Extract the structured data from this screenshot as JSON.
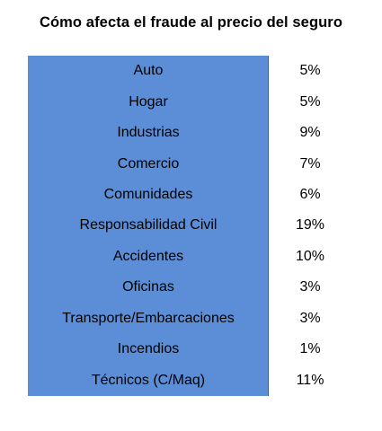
{
  "chart_data": {
    "type": "table",
    "title": "Cómo afecta el fraude al precio del seguro",
    "categories": [
      "Auto",
      "Hogar",
      "Industrias",
      "Comercio",
      "Comunidades",
      "Responsabilidad Civil",
      "Accidentes",
      "Oficinas",
      "Transporte/Embarcaciones",
      "Incendios",
      "Técnicos (C/Maq)"
    ],
    "values": [
      5,
      5,
      9,
      7,
      6,
      19,
      10,
      3,
      3,
      1,
      11
    ],
    "value_labels": [
      "5%",
      "5%",
      "9%",
      "7%",
      "6%",
      "19%",
      "10%",
      "3%",
      "3%",
      "1%",
      "11%"
    ],
    "unit": "%"
  },
  "colors": {
    "label_column_background": "#5b8ed6",
    "text": "#000000",
    "page_background": "#ffffff"
  }
}
